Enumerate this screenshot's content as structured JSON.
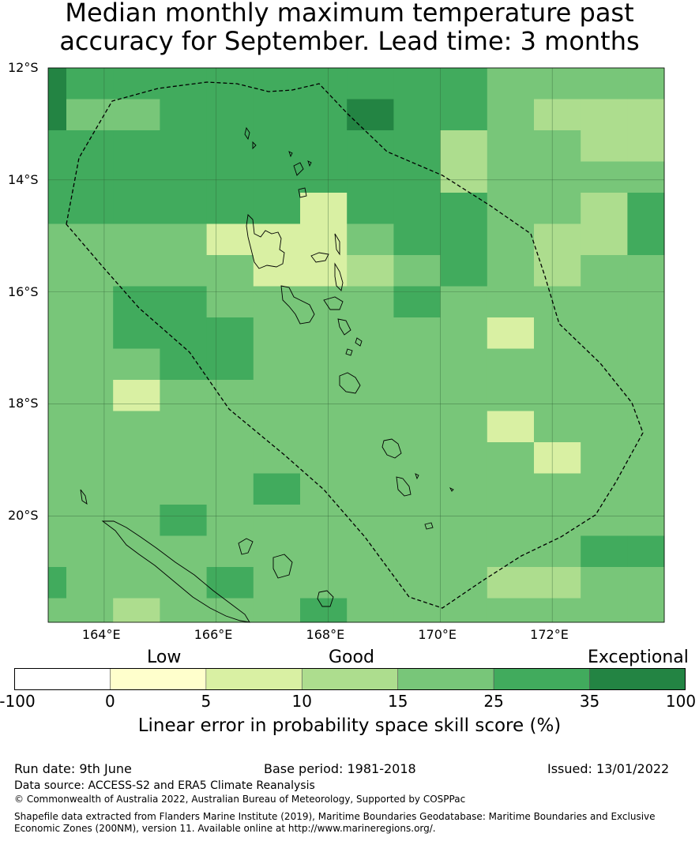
{
  "title_line1": "Median monthly maximum temperature past",
  "title_line2": "accuracy for September. Lead time: 3 months",
  "map": {
    "lon_range": [
      163,
      174
    ],
    "lat_range": [
      -21.9,
      -12
    ],
    "lat_ticks": [
      "12°S",
      "14°S",
      "16°S",
      "18°S",
      "20°S"
    ],
    "lon_ticks": [
      "164°E",
      "166°E",
      "168°E",
      "170°E",
      "172°E"
    ],
    "category_colors": [
      "#ffffff",
      "#ffffcc",
      "#d9f0a3",
      "#addd8e",
      "#78c679",
      "#41ab5d",
      "#238443"
    ],
    "grid_rows": [
      "6555555555444455",
      "6445555655433335",
      "5555555553443335",
      "5555555553444454",
      "5555552555443554",
      "4444222455433544",
      "4444422345434444",
      "4455444454444444",
      "4455544444244444",
      "4445544444444444",
      "4424444444444444",
      "4444444444244444",
      "4444444444424444",
      "4444454444444444",
      "4445444444444444",
      "4444444444445555",
      "5444544444334444",
      "4434445444444444",
      "4434444455442444"
    ]
  },
  "categories": {
    "low": "Low",
    "good": "Good",
    "exceptional": "Exceptional"
  },
  "colorbar": {
    "colors": [
      "#ffffff",
      "#ffffcc",
      "#d9f0a3",
      "#addd8e",
      "#78c679",
      "#41ab5d",
      "#238443"
    ],
    "ticks": [
      "-100",
      "0",
      "5",
      "10",
      "15",
      "25",
      "35",
      "100"
    ],
    "label": "Linear error in probability space skill score (%)"
  },
  "footer": {
    "run_date": "Run date: 9th June",
    "base_period": "Base period: 1981-2018",
    "issued": "Issued: 13/01/2022",
    "data_source": "Data source: ACCESS-S2 and ERA5 Climate Reanalysis",
    "copyright": "© Commonwealth of Australia 2022, Australian Bureau of Meteorology, Supported by COSPPac",
    "shapefile_line1": "Shapefile data extracted from Flanders Marine Institute (2019), Maritime Boundaries Geodatabase: Maritime Boundaries and Exclusive",
    "shapefile_line2": "Economic Zones (200NM), version 11. Available online at http://www.marineregions.org/."
  }
}
